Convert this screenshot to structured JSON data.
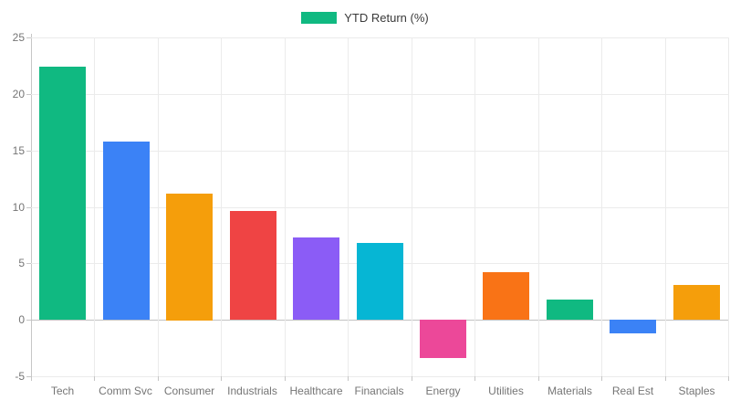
{
  "legend": {
    "label": "YTD Return (%)",
    "swatch_color": "#10B981"
  },
  "chart_data": {
    "type": "bar",
    "title": "",
    "xlabel": "",
    "ylabel": "",
    "categories": [
      "Tech",
      "Comm Svc",
      "Consumer",
      "Industrials",
      "Healthcare",
      "Financials",
      "Energy",
      "Utilities",
      "Materials",
      "Real Est",
      "Staples"
    ],
    "series": [
      {
        "name": "YTD Return (%)",
        "values": [
          22.4,
          15.8,
          11.2,
          9.6,
          7.3,
          6.8,
          -3.4,
          4.2,
          1.8,
          -1.2,
          3.1
        ]
      }
    ],
    "bar_colors": [
      "#10B981",
      "#3B82F6",
      "#F59E0B",
      "#EF4444",
      "#8B5CF6",
      "#06B6D4",
      "#EC4899",
      "#F97316",
      "#10B981",
      "#3B82F6",
      "#F59E0B"
    ],
    "ylim": [
      -5,
      25
    ],
    "yticks": [
      -5,
      0,
      5,
      10,
      15,
      20,
      25
    ],
    "grid": true,
    "legend_position": "top"
  },
  "colors": {
    "grid": "#ebebeb",
    "zero_line": "#c2c2c2",
    "axis_line": "#c6c6c6",
    "tick_text": "#757575",
    "legend_text": "#3a3a3a",
    "background": "#ffffff"
  }
}
